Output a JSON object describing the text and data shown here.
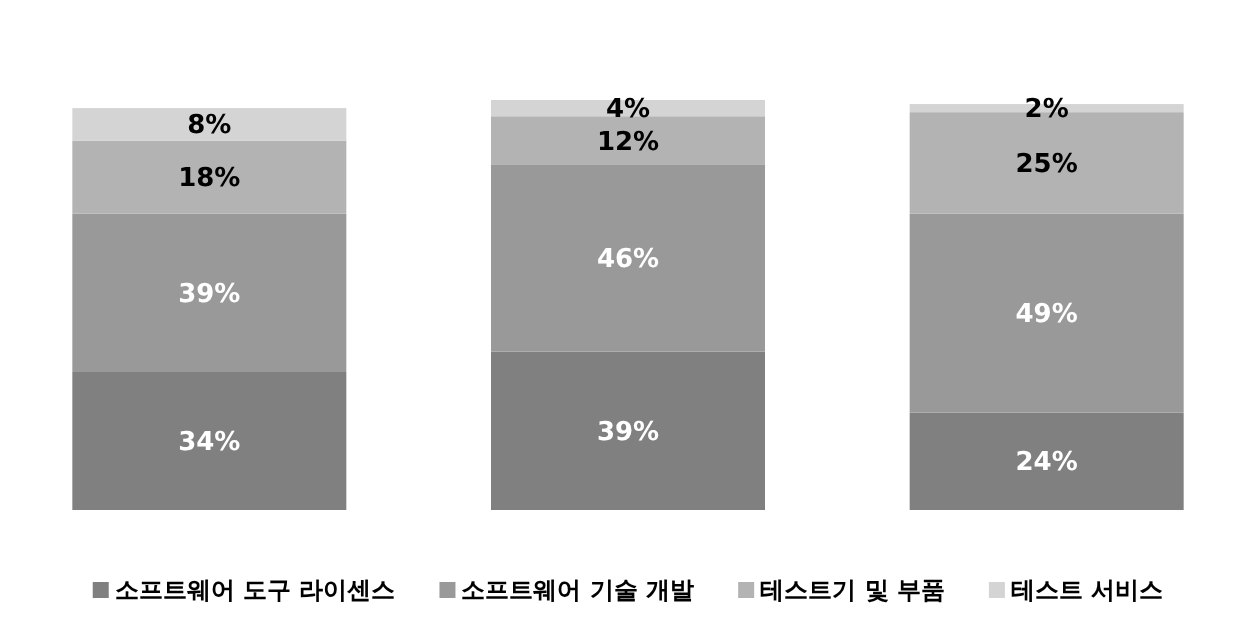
{
  "chart_data": {
    "type": "bar",
    "stacked": true,
    "categories": [
      null,
      null,
      null
    ],
    "legend": "bottom",
    "series": [
      {
        "name": "소프트웨어 도구 라이센스",
        "color": "#808080",
        "values": [
          34,
          39,
          24
        ],
        "value_labels": [
          "34%",
          "39%",
          "24%"
        ]
      },
      {
        "name": "소프트웨어 기술 개발",
        "color": "#999999",
        "values": [
          39,
          46,
          49
        ],
        "value_labels": [
          "39%",
          "46%",
          "49%"
        ]
      },
      {
        "name": "테스트기 및 부품",
        "color": "#b3b3b3",
        "values": [
          18,
          12,
          25
        ],
        "value_labels": [
          "18%",
          "12%",
          "25%"
        ]
      },
      {
        "name": "테스트 서비스",
        "color": "#d4d4d4",
        "values": [
          8,
          4,
          2
        ],
        "value_labels": [
          "8%",
          "4%",
          "2%"
        ]
      }
    ]
  }
}
